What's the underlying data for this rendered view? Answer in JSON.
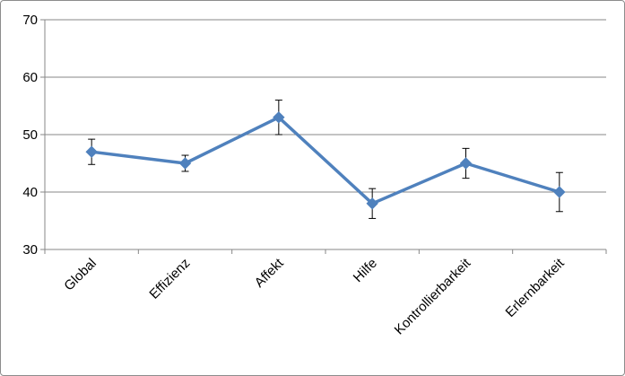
{
  "chart_data": {
    "type": "line",
    "title": "",
    "xlabel": "",
    "ylabel": "",
    "categories": [
      "Global",
      "Effizienz",
      "Affekt",
      "Hilfe",
      "Kontrollierbarkeit",
      "Erlernbarkeit"
    ],
    "series": [
      {
        "values": [
          47,
          45,
          53,
          38,
          45,
          40
        ],
        "error_low": [
          44.8,
          43.6,
          50.0,
          35.4,
          42.4,
          36.6
        ],
        "error_high": [
          49.2,
          46.4,
          56.0,
          40.6,
          47.6,
          43.4
        ],
        "color": "#4f81bd",
        "marker": "diamond"
      }
    ],
    "ylim": [
      30,
      70
    ],
    "yticks": [
      30,
      40,
      50,
      60,
      70
    ],
    "grid": "horizontal",
    "legend": "none"
  }
}
